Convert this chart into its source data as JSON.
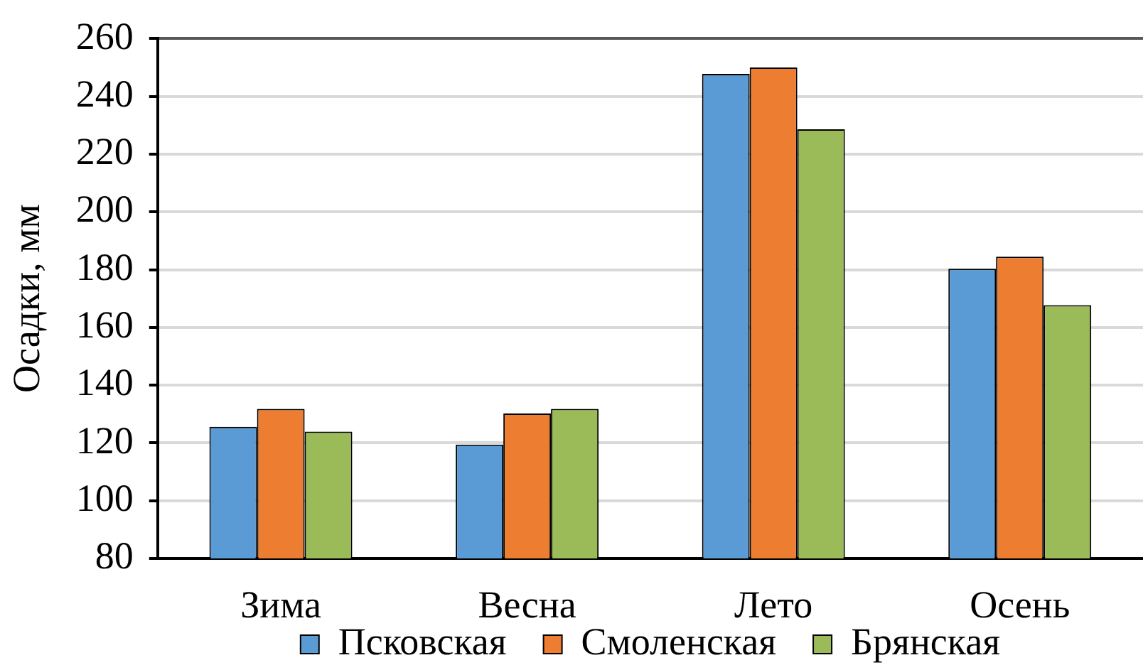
{
  "chart_data": {
    "type": "bar",
    "ylabel": "Осадки, мм",
    "categories": [
      "Зима",
      "Весна",
      "Лето",
      "Осень"
    ],
    "series": [
      {
        "name": "Псковская",
        "color": "#5b9bd5",
        "values": [
          125.6,
          119.4,
          247.8,
          180.3
        ]
      },
      {
        "name": "Смоленская",
        "color": "#ed7d31",
        "values": [
          131.8,
          130.2,
          250,
          184.5
        ]
      },
      {
        "name": "Брянская",
        "color": "#9bbb59",
        "values": [
          123.9,
          131.8,
          228.6,
          167.7
        ]
      }
    ],
    "ylim": [
      80,
      260
    ],
    "yticks": [
      80,
      100,
      120,
      140,
      160,
      180,
      200,
      220,
      240,
      260
    ],
    "grid": "y",
    "legend": "bottom"
  }
}
